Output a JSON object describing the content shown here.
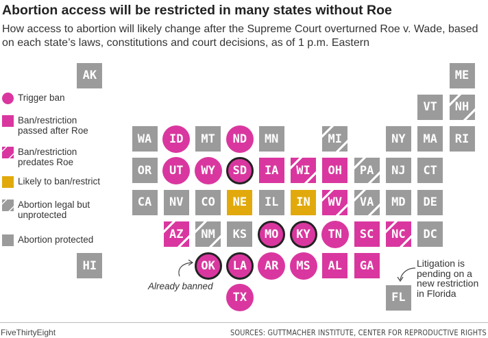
{
  "title": "Abortion access will be restricted in many states without Roe",
  "subtitle": "How access to abortion will likely change after the Supreme Court overturned Roe v. Wade, based on each state’s laws, constitutions and court decisions, as of 1 p.m. Eastern",
  "colors": {
    "pink": "#d9379f",
    "gray": "#9b9b9b",
    "yellow": "#e1a90c",
    "outline": "#222222"
  },
  "legend": [
    {
      "key": "trigger",
      "label": "Trigger ban",
      "shape": "circle",
      "color": "pink",
      "striped": false
    },
    {
      "key": "after",
      "label": "Ban/restriction passed after Roe",
      "shape": "square",
      "color": "pink",
      "striped": false
    },
    {
      "key": "predates",
      "label": "Ban/restriction predates Roe",
      "shape": "square",
      "color": "pink",
      "striped": true
    },
    {
      "key": "likely",
      "label": "Likely to ban/restrict",
      "shape": "square",
      "color": "yellow",
      "striped": false
    },
    {
      "key": "unprotected",
      "label": "Abortion legal but unprotected",
      "shape": "square",
      "color": "gray",
      "striped": true
    },
    {
      "key": "protected",
      "label": "Abortion protected",
      "shape": "square",
      "color": "gray",
      "striped": false
    }
  ],
  "states": [
    {
      "abbr": "AK",
      "category": "protected"
    },
    {
      "abbr": "ME",
      "category": "protected"
    },
    {
      "abbr": "VT",
      "category": "protected"
    },
    {
      "abbr": "NH",
      "category": "unprotected"
    },
    {
      "abbr": "WA",
      "category": "protected"
    },
    {
      "abbr": "ID",
      "category": "trigger"
    },
    {
      "abbr": "MT",
      "category": "protected"
    },
    {
      "abbr": "ND",
      "category": "trigger"
    },
    {
      "abbr": "MN",
      "category": "protected"
    },
    {
      "abbr": "MI",
      "category": "unprotected"
    },
    {
      "abbr": "NY",
      "category": "protected"
    },
    {
      "abbr": "MA",
      "category": "protected"
    },
    {
      "abbr": "RI",
      "category": "protected"
    },
    {
      "abbr": "OR",
      "category": "protected"
    },
    {
      "abbr": "UT",
      "category": "trigger"
    },
    {
      "abbr": "WY",
      "category": "trigger"
    },
    {
      "abbr": "SD",
      "category": "trigger",
      "already_banned": true
    },
    {
      "abbr": "IA",
      "category": "after"
    },
    {
      "abbr": "WI",
      "category": "predates"
    },
    {
      "abbr": "OH",
      "category": "after"
    },
    {
      "abbr": "PA",
      "category": "unprotected"
    },
    {
      "abbr": "NJ",
      "category": "protected"
    },
    {
      "abbr": "CT",
      "category": "protected"
    },
    {
      "abbr": "CA",
      "category": "protected"
    },
    {
      "abbr": "NV",
      "category": "protected"
    },
    {
      "abbr": "CO",
      "category": "protected"
    },
    {
      "abbr": "NE",
      "category": "likely"
    },
    {
      "abbr": "IL",
      "category": "protected"
    },
    {
      "abbr": "IN",
      "category": "likely"
    },
    {
      "abbr": "WV",
      "category": "predates"
    },
    {
      "abbr": "VA",
      "category": "unprotected"
    },
    {
      "abbr": "MD",
      "category": "protected"
    },
    {
      "abbr": "DE",
      "category": "protected"
    },
    {
      "abbr": "AZ",
      "category": "predates"
    },
    {
      "abbr": "NM",
      "category": "unprotected"
    },
    {
      "abbr": "KS",
      "category": "protected"
    },
    {
      "abbr": "MO",
      "category": "trigger",
      "already_banned": true
    },
    {
      "abbr": "KY",
      "category": "trigger",
      "already_banned": true
    },
    {
      "abbr": "TN",
      "category": "trigger"
    },
    {
      "abbr": "SC",
      "category": "after"
    },
    {
      "abbr": "NC",
      "category": "predates"
    },
    {
      "abbr": "DC",
      "category": "protected"
    },
    {
      "abbr": "HI",
      "category": "protected"
    },
    {
      "abbr": "OK",
      "category": "trigger",
      "already_banned": true
    },
    {
      "abbr": "LA",
      "category": "trigger",
      "already_banned": true
    },
    {
      "abbr": "AR",
      "category": "trigger"
    },
    {
      "abbr": "MS",
      "category": "trigger"
    },
    {
      "abbr": "AL",
      "category": "after"
    },
    {
      "abbr": "GA",
      "category": "after"
    },
    {
      "abbr": "TX",
      "category": "trigger"
    },
    {
      "abbr": "FL",
      "category": "protected"
    }
  ],
  "annotations": {
    "already_banned": "Already banned",
    "florida": "Litigation is pending on a new restriction in Florida"
  },
  "footer": {
    "brand": "FiveThirtyEight",
    "source": "SOURCES: GUTTMACHER INSTITUTE, CENTER FOR REPRODUCTIVE RIGHTS"
  }
}
